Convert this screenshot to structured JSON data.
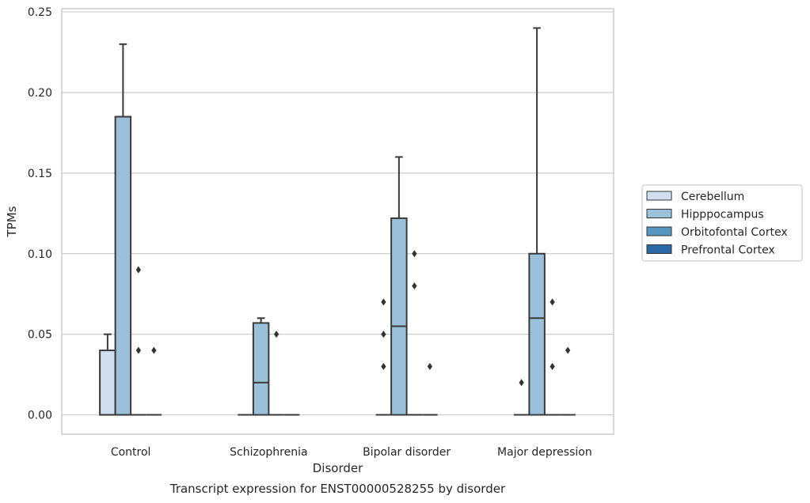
{
  "chart_data": {
    "type": "box",
    "title": "Transcript expression for ENST00000528255 by disorder",
    "xlabel": "Disorder",
    "ylabel": "TPMs",
    "categories": [
      "Control",
      "Schizophrenia",
      "Bipolar disorder",
      "Major depression"
    ],
    "ylim": [
      -0.012,
      0.252
    ],
    "yticks": [
      0.0,
      0.05,
      0.1,
      0.15,
      0.2,
      0.25
    ],
    "ytick_labels": [
      "0.00",
      "0.05",
      "0.10",
      "0.15",
      "0.20",
      "0.25"
    ],
    "grid": true,
    "legend_position": "right",
    "series": [
      {
        "name": "Cerebellum",
        "color": "#d0dff0",
        "boxes": [
          {
            "category": "Control",
            "q1": 0.0,
            "median": 0.0,
            "q3": 0.04,
            "whisker_low": 0.0,
            "whisker_high": 0.05,
            "outliers": []
          },
          {
            "category": "Schizophrenia",
            "q1": 0.0,
            "median": 0.0,
            "q3": 0.0,
            "whisker_low": 0.0,
            "whisker_high": 0.0,
            "outliers": []
          },
          {
            "category": "Bipolar disorder",
            "q1": 0.0,
            "median": 0.0,
            "q3": 0.0,
            "whisker_low": 0.0,
            "whisker_high": 0.0,
            "outliers": [
              0.03,
              0.05,
              0.07
            ]
          },
          {
            "category": "Major depression",
            "q1": 0.0,
            "median": 0.0,
            "q3": 0.0,
            "whisker_low": 0.0,
            "whisker_high": 0.0,
            "outliers": [
              0.02
            ]
          }
        ]
      },
      {
        "name": "Hipppocampus",
        "color": "#9ac1d9",
        "boxes": [
          {
            "category": "Control",
            "q1": 0.0,
            "median": 0.0,
            "q3": 0.185,
            "whisker_low": 0.0,
            "whisker_high": 0.23,
            "outliers": []
          },
          {
            "category": "Schizophrenia",
            "q1": 0.0,
            "median": 0.02,
            "q3": 0.057,
            "whisker_low": 0.0,
            "whisker_high": 0.06,
            "outliers": []
          },
          {
            "category": "Bipolar disorder",
            "q1": 0.0,
            "median": 0.055,
            "q3": 0.122,
            "whisker_low": 0.0,
            "whisker_high": 0.16,
            "outliers": []
          },
          {
            "category": "Major depression",
            "q1": 0.0,
            "median": 0.06,
            "q3": 0.1,
            "whisker_low": 0.0,
            "whisker_high": 0.24,
            "outliers": []
          }
        ]
      },
      {
        "name": "Orbitofontal Cortex",
        "color": "#5796c1",
        "boxes": [
          {
            "category": "Control",
            "q1": 0.0,
            "median": 0.0,
            "q3": 0.0,
            "whisker_low": 0.0,
            "whisker_high": 0.0,
            "outliers": [
              0.04,
              0.09
            ]
          },
          {
            "category": "Schizophrenia",
            "q1": 0.0,
            "median": 0.0,
            "q3": 0.0,
            "whisker_low": 0.0,
            "whisker_high": 0.0,
            "outliers": [
              0.05
            ]
          },
          {
            "category": "Bipolar disorder",
            "q1": 0.0,
            "median": 0.0,
            "q3": 0.0,
            "whisker_low": 0.0,
            "whisker_high": 0.0,
            "outliers": [
              0.08,
              0.1
            ]
          },
          {
            "category": "Major depression",
            "q1": 0.0,
            "median": 0.0,
            "q3": 0.0,
            "whisker_low": 0.0,
            "whisker_high": 0.0,
            "outliers": [
              0.03,
              0.07
            ]
          }
        ]
      },
      {
        "name": "Prefrontal Cortex",
        "color": "#2b6aa5",
        "boxes": [
          {
            "category": "Control",
            "q1": 0.0,
            "median": 0.0,
            "q3": 0.0,
            "whisker_low": 0.0,
            "whisker_high": 0.0,
            "outliers": [
              0.04
            ]
          },
          {
            "category": "Schizophrenia",
            "q1": 0.0,
            "median": 0.0,
            "q3": 0.0,
            "whisker_low": 0.0,
            "whisker_high": 0.0,
            "outliers": []
          },
          {
            "category": "Bipolar disorder",
            "q1": 0.0,
            "median": 0.0,
            "q3": 0.0,
            "whisker_low": 0.0,
            "whisker_high": 0.0,
            "outliers": [
              0.03
            ]
          },
          {
            "category": "Major depression",
            "q1": 0.0,
            "median": 0.0,
            "q3": 0.0,
            "whisker_low": 0.0,
            "whisker_high": 0.0,
            "outliers": [
              0.04
            ]
          }
        ]
      }
    ]
  },
  "colors": {
    "axes_edge": "#cccccc",
    "grid": "#cccccc",
    "box_edge": "#3a3a3a",
    "text": "#262626"
  }
}
